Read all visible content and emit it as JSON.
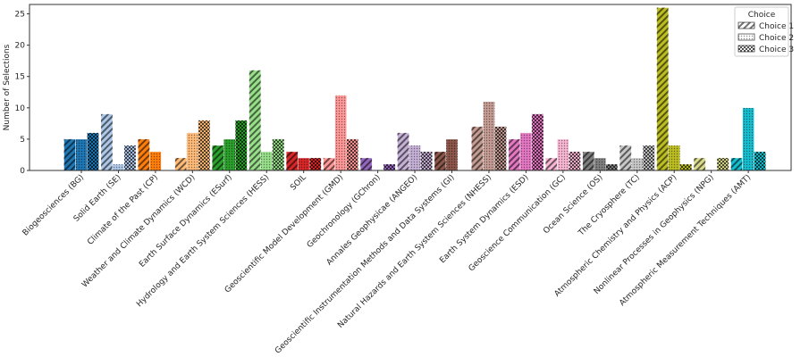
{
  "chart_data": {
    "type": "bar",
    "title": "",
    "xlabel": "",
    "ylabel": "Number of Selections",
    "ylim": [
      0,
      26.5
    ],
    "yticks": [
      0,
      5,
      10,
      15,
      20,
      25
    ],
    "grid": false,
    "legend": {
      "title": "Choice",
      "placement": "top-right"
    },
    "categories": [
      "Biogeosciences (BG)",
      "Solid Earth (SE)",
      "Climate of the Past (CP)",
      "Weather and Climate Dynamics (WCD)",
      "Earth Surface Dynamics (ESurf)",
      "Hydrology and Earth System Sciences (HESS)",
      "SOIL",
      "Geoscientific Model Development (GMD)",
      "Geochronology (GChron)",
      "Annales Geophysicae (ANGEO)",
      "Geoscientific Instrumentation Methods and Data Systems (GI)",
      "Natural Hazards and Earth System Sciences (NHESS)",
      "Earth System Dynamics (ESD)",
      "Geoscience Communication (GC)",
      "Ocean Science (OS)",
      "The Cryosphere (TC)",
      "Atmospheric Chemistry and Physics (ACP)",
      "Nonlinear Processes in Geophysics (NPG)",
      "Atmospheric Measurement Techniques (AMT)"
    ],
    "category_colors": [
      "#1f77b4",
      "#aec7e8",
      "#ff7f0e",
      "#ffbb78",
      "#2ca02c",
      "#98df8a",
      "#d62728",
      "#ff9896",
      "#9467bd",
      "#c5b0d5",
      "#8c564b",
      "#c49c94",
      "#e377c2",
      "#f7b6d2",
      "#7f7f7f",
      "#c7c7c7",
      "#bcbd22",
      "#dbdb8d",
      "#17becf"
    ],
    "series": [
      {
        "name": "Choice 1",
        "hatch": "diagonal",
        "values": [
          5,
          9,
          5,
          2,
          4,
          16,
          3,
          2,
          2,
          6,
          3,
          7,
          5,
          2,
          3,
          4,
          26,
          2,
          2
        ]
      },
      {
        "name": "Choice 2",
        "hatch": "dots",
        "values": [
          5,
          1,
          3,
          6,
          5,
          3,
          2,
          12,
          0,
          4,
          5,
          11,
          6,
          5,
          2,
          2,
          4,
          0,
          10
        ]
      },
      {
        "name": "Choice 3",
        "hatch": "circles",
        "values": [
          6,
          4,
          0,
          8,
          8,
          5,
          2,
          5,
          1,
          3,
          0,
          7,
          9,
          3,
          1,
          4,
          1,
          2,
          3
        ]
      }
    ]
  }
}
